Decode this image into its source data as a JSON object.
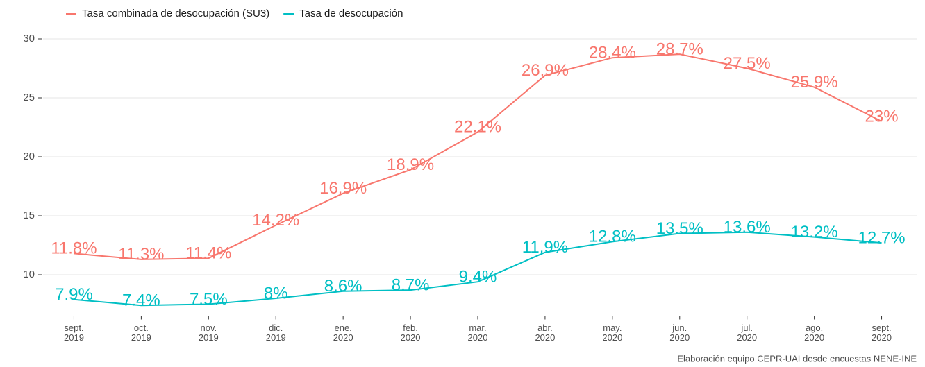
{
  "chart_data": {
    "type": "line",
    "caption": "Elaboración equipo CEPR-UAI desde encuestas NENE-INE",
    "categories": [
      "sept. 2019",
      "oct. 2019",
      "nov. 2019",
      "dic. 2019",
      "ene. 2020",
      "feb. 2020",
      "mar. 2020",
      "abr. 2020",
      "may. 2020",
      "jun. 2020",
      "jul. 2020",
      "ago. 2020",
      "sept. 2020"
    ],
    "series": [
      {
        "name": "Tasa combinada de desocupación (SU3)",
        "color": "#F8766D",
        "values": [
          11.8,
          11.3,
          11.4,
          14.2,
          16.9,
          18.9,
          22.1,
          26.9,
          28.4,
          28.7,
          27.5,
          25.9,
          23
        ],
        "value_labels": [
          "11.8%",
          "11.3%",
          "11.4%",
          "14.2%",
          "16.9%",
          "18.9%",
          "22.1%",
          "26.9%",
          "28.4%",
          "28.7%",
          "27.5%",
          "25.9%",
          "23%"
        ]
      },
      {
        "name": "Tasa de desocupación",
        "color": "#00BFC4",
        "values": [
          7.9,
          7.4,
          7.5,
          8,
          8.6,
          8.7,
          9.4,
          11.9,
          12.8,
          13.5,
          13.6,
          13.2,
          12.7
        ],
        "value_labels": [
          "7.9%",
          "7.4%",
          "7.5%",
          "8%",
          "8.6%",
          "8.7%",
          "9.4%",
          "11.9%",
          "12.8%",
          "13.5%",
          "13.6%",
          "13.2%",
          "12.7%"
        ]
      }
    ],
    "ylim": [
      6.5,
      31
    ],
    "yticks": [
      10,
      15,
      20,
      25,
      30
    ],
    "grid": true,
    "legend": "top"
  }
}
